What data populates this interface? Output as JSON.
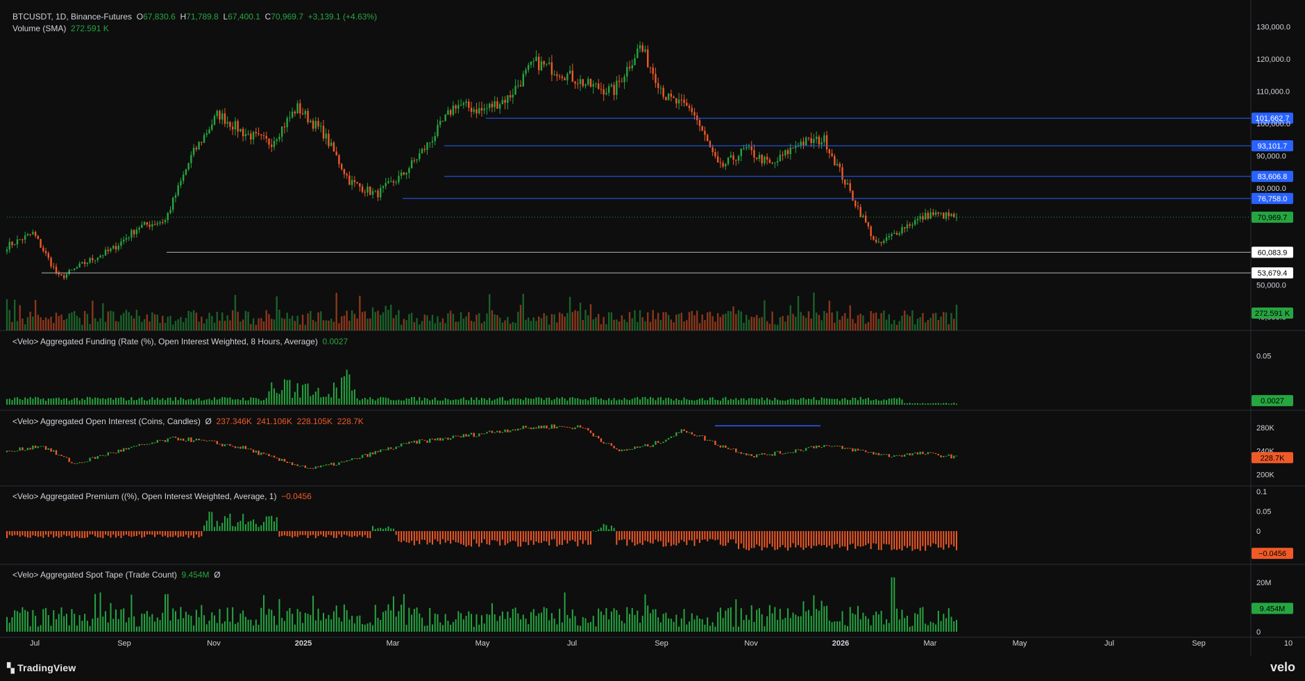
{
  "header": {
    "symbol": "BTCUSDT, 1D, Binance-Futures",
    "open_label": "O",
    "open": "67,830.6",
    "high_label": "H",
    "high": "71,789.8",
    "low_label": "L",
    "low": "67,400.1",
    "close_label": "C",
    "close": "70,969.7",
    "change": "+3,139.1 (+4.63%)"
  },
  "volume_legend": {
    "label": "Volume (SMA)",
    "value": "272.591 K"
  },
  "panes": {
    "funding": {
      "label": "<Velo> Aggregated Funding (Rate (%), Open Interest Weighted, 8 Hours, Average)",
      "value": "0.0027"
    },
    "oi": {
      "label": "<Velo> Aggregated Open Interest (Coins, Candles)",
      "symbol": "Ø",
      "o": "237.346K",
      "h": "241.106K",
      "l": "228.105K",
      "c": "228.7K"
    },
    "premium": {
      "label": "<Velo> Aggregated Premium ((%), Open Interest Weighted, Average, 1)",
      "value": "−0.0456"
    },
    "spot": {
      "label": "<Velo> Aggregated Spot Tape (Trade Count)",
      "value": "9.454M",
      "symbol": "Ø"
    }
  },
  "branding": {
    "tradingview": "TradingView",
    "velo": "velo"
  },
  "colors": {
    "background": "#0e0e0e",
    "up": "#26a641",
    "down": "#f05a28",
    "level_line": "#2962ff",
    "level_label": "#2962ff",
    "support_line": "#b2b5be",
    "price_label": "#26a641",
    "neg_label": "#f05a28"
  },
  "chart_data": {
    "type": "candlestick",
    "price_axis_ticks": [
      "130,000.0",
      "120,000.0",
      "110,000.0",
      "100,000.0",
      "90,000.0",
      "80,000.0",
      "50,000.0",
      "40,000.0"
    ],
    "price_range": [
      38000,
      134000
    ],
    "time_axis_labels": [
      "Jul",
      "Sep",
      "Nov",
      "2025",
      "Mar",
      "May",
      "Jul",
      "Sep",
      "Nov",
      "2026",
      "Mar",
      "May",
      "Jul",
      "Sep",
      "10"
    ],
    "price_keypoints": [
      [
        "Jul",
        62000
      ],
      [
        "Aug",
        66000
      ],
      [
        "Aug",
        52000
      ],
      [
        "Sep",
        57000
      ],
      [
        "Oct",
        61000
      ],
      [
        "Oct",
        68000
      ],
      [
        "Nov",
        70000
      ],
      [
        "Nov",
        90000
      ],
      [
        "Dec",
        103000
      ],
      [
        "Dec",
        97000
      ],
      [
        "2025",
        94000
      ],
      [
        "Jan",
        105000
      ],
      [
        "Feb",
        97000
      ],
      [
        "Mar",
        82000
      ],
      [
        "Apr",
        78000
      ],
      [
        "Apr",
        84000
      ],
      [
        "May",
        94000
      ],
      [
        "May",
        106000
      ],
      [
        "Jun",
        104000
      ],
      [
        "Jul",
        108000
      ],
      [
        "Jul",
        119000
      ],
      [
        "Aug",
        116000
      ],
      [
        "Aug",
        112000
      ],
      [
        "Sep",
        110000
      ],
      [
        "Oct",
        124000
      ],
      [
        "Oct",
        108000
      ],
      [
        "Nov",
        104000
      ],
      [
        "Nov",
        86000
      ],
      [
        "Dec",
        92000
      ],
      [
        "Dec",
        87000
      ],
      [
        "2026",
        94000
      ],
      [
        "Jan",
        95000
      ],
      [
        "Feb",
        78000
      ],
      [
        "Feb",
        62000
      ],
      [
        "Feb",
        68000
      ],
      [
        "Mar",
        72000
      ],
      [
        "Mar",
        70969.7
      ]
    ],
    "horizontal_levels": [
      {
        "value": "101,662.7",
        "price": 101662.7,
        "color": "#2962ff",
        "from": "May"
      },
      {
        "value": "93,101.7",
        "price": 93101.7,
        "color": "#2962ff",
        "from": "Apr"
      },
      {
        "value": "83,606.8",
        "price": 83606.8,
        "color": "#2962ff",
        "from": "Apr"
      },
      {
        "value": "76,758.0",
        "price": 76758.0,
        "color": "#2962ff",
        "from": "Mar"
      },
      {
        "value": "60,083.9",
        "price": 60083.9,
        "color": "#b2b5be",
        "from": "Oct"
      },
      {
        "value": "53,679.4",
        "price": 53679.4,
        "color": "#b2b5be",
        "from": "Jul"
      }
    ],
    "last_price": {
      "value": "70,969.7",
      "price": 70969.7
    },
    "volume_last": "272.591 K",
    "funding_ticks": [
      "0.05"
    ],
    "funding_range": [
      0,
      0.07
    ],
    "funding_last": "0.0027",
    "oi_ticks": [
      "280K",
      "240K",
      "200K"
    ],
    "oi_range": [
      190000,
      300000
    ],
    "oi_last": "228.7K",
    "premium_ticks": [
      "0.1",
      "0.05",
      "0"
    ],
    "premium_range": [
      -0.07,
      0.1
    ],
    "premium_last": "−0.0456",
    "spot_ticks": [
      "20M",
      "0"
    ],
    "spot_range": [
      0,
      25000000
    ],
    "spot_last": "9.454M"
  }
}
